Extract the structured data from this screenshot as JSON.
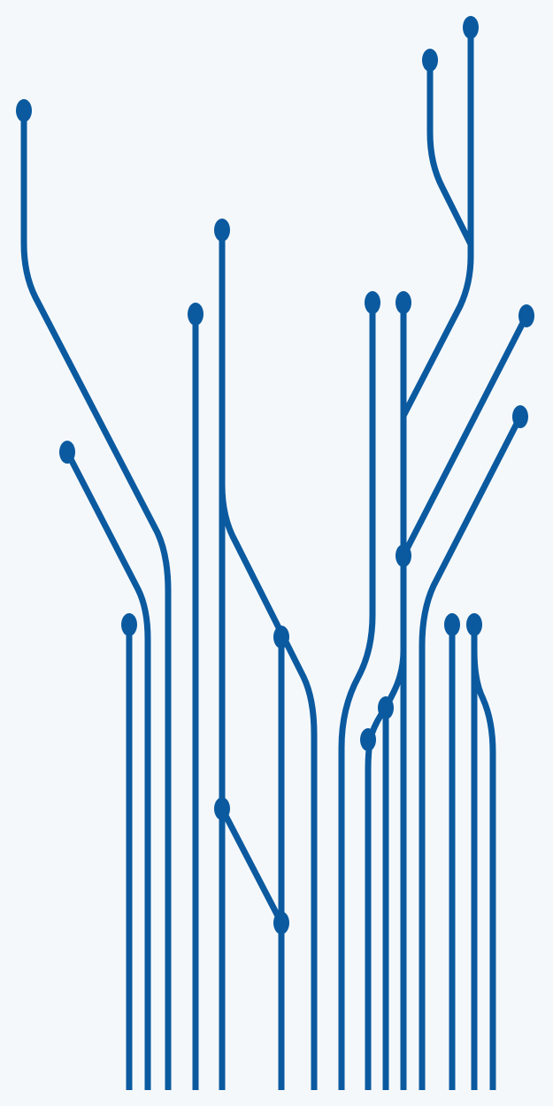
{
  "illustration": {
    "name": "circuit-trace-graphic",
    "background_color": "#f5f8fa",
    "trace_color": "#0b5aa0",
    "node_color": "#0b5aa0"
  }
}
